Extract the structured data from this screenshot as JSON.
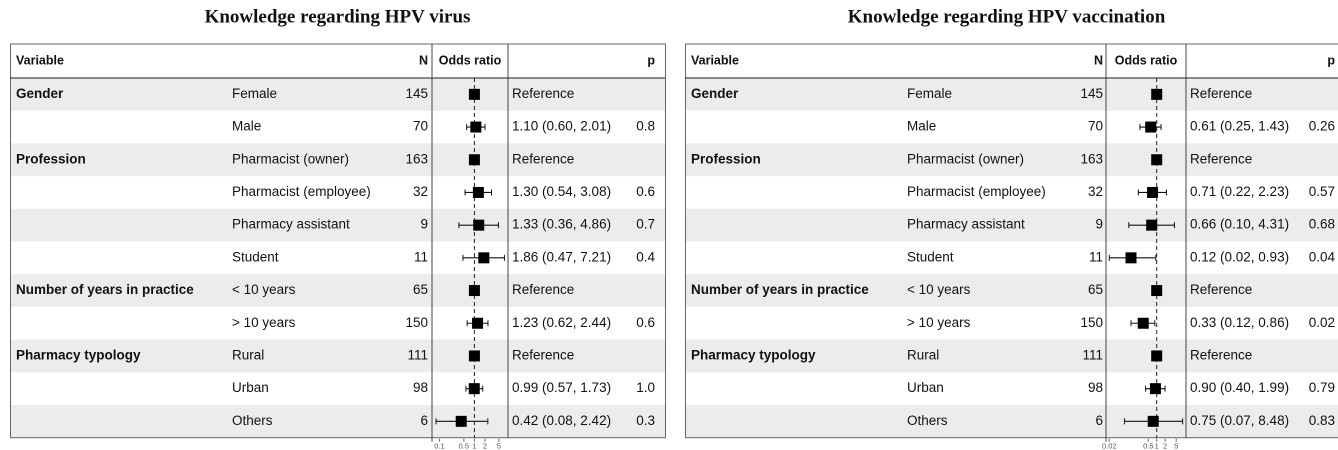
{
  "chart_data": [
    {
      "type": "forest",
      "title": "Knowledge regarding HPV virus",
      "headers": [
        "Variable",
        "N",
        "Odds ratio",
        "p"
      ],
      "variables": [
        "Gender",
        null,
        "Profession",
        null,
        null,
        null,
        "Number of years in practice",
        null,
        "Pharmacy typology",
        null,
        null
      ],
      "levels": [
        "Female",
        "Male",
        "Pharmacist (owner)",
        "Pharmacist (employee)",
        "Pharmacy assistant",
        "Student",
        "< 10 years",
        "> 10 years",
        "Rural",
        "Urban",
        "Others"
      ],
      "n": [
        145,
        70,
        163,
        32,
        9,
        11,
        65,
        150,
        111,
        98,
        6
      ],
      "values": [
        1,
        1.1,
        1,
        1.3,
        1.33,
        1.86,
        1,
        1.23,
        1,
        0.99,
        0.42
      ],
      "ci_low": [
        null,
        0.6,
        null,
        0.54,
        0.36,
        0.47,
        null,
        0.62,
        null,
        0.57,
        0.08
      ],
      "ci_high": [
        null,
        2.01,
        null,
        3.08,
        4.86,
        7.21,
        null,
        2.44,
        null,
        1.73,
        2.42
      ],
      "estimates": [
        "Reference",
        "1.10 (0.60, 2.01)",
        "Reference",
        "1.30 (0.54, 3.08)",
        "1.33 (0.36, 4.86)",
        "1.86 (0.47, 7.21)",
        "Reference",
        "1.23 (0.62, 2.44)",
        "Reference",
        "0.99 (0.57, 1.73)",
        "0.42 (0.08, 2.42)"
      ],
      "p": [
        null,
        "0.8",
        null,
        "0.6",
        "0.7",
        "0.4",
        null,
        "0.6",
        null,
        "1.0",
        "0.3"
      ],
      "log_x": true,
      "xlim": [
        0.07,
        8
      ],
      "xticks": [
        0.1,
        0.5,
        1,
        2,
        5
      ],
      "reference_line": 1
    },
    {
      "type": "forest",
      "title": "Knowledge regarding HPV vaccination",
      "headers": [
        "Variable",
        "N",
        "Odds ratio",
        "p"
      ],
      "variables": [
        "Gender",
        null,
        "Profession",
        null,
        null,
        null,
        "Number of years in practice",
        null,
        "Pharmacy typology",
        null,
        null
      ],
      "levels": [
        "Female",
        "Male",
        "Pharmacist (owner)",
        "Pharmacist (employee)",
        "Pharmacy assistant",
        "Student",
        "< 10 years",
        "> 10 years",
        "Rural",
        "Urban",
        "Others"
      ],
      "n": [
        145,
        70,
        163,
        32,
        9,
        11,
        65,
        150,
        111,
        98,
        6
      ],
      "values": [
        1,
        0.61,
        1,
        0.71,
        0.66,
        0.12,
        1,
        0.33,
        1,
        0.9,
        0.75
      ],
      "ci_low": [
        null,
        0.25,
        null,
        0.22,
        0.1,
        0.02,
        null,
        0.12,
        null,
        0.4,
        0.07
      ],
      "ci_high": [
        null,
        1.43,
        null,
        2.23,
        4.31,
        0.93,
        null,
        0.86,
        null,
        1.99,
        8.48
      ],
      "estimates": [
        "Reference",
        "0.61 (0.25, 1.43)",
        "Reference",
        "0.71 (0.22, 2.23)",
        "0.66 (0.10, 4.31)",
        "0.12 (0.02, 0.93)",
        "Reference",
        "0.33 (0.12, 0.86)",
        "Reference",
        "0.90 (0.40, 1.99)",
        "0.75 (0.07, 8.48)"
      ],
      "p": [
        null,
        "0.26",
        null,
        "0.57",
        "0.68",
        "0.04",
        null,
        "0.02",
        null,
        "0.79",
        "0.83"
      ],
      "log_x": true,
      "xlim": [
        0.018,
        9.5
      ],
      "xticks": [
        0.02,
        0.5,
        1,
        2,
        5
      ],
      "reference_line": 1
    }
  ]
}
